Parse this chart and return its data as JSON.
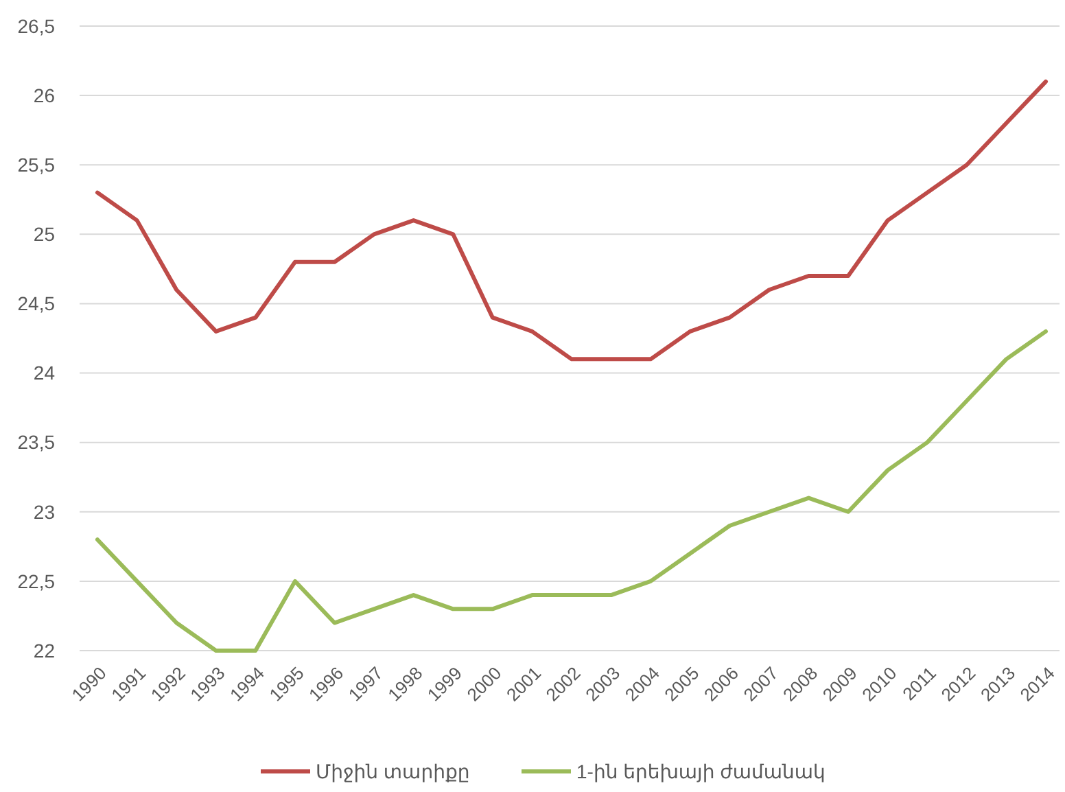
{
  "chart_data": {
    "type": "line",
    "categories": [
      "1990",
      "1991",
      "1992",
      "1993",
      "1994",
      "1995",
      "1996",
      "1997",
      "1998",
      "1999",
      "2000",
      "2001",
      "2002",
      "2003",
      "2004",
      "2005",
      "2006",
      "2007",
      "2008",
      "2009",
      "2010",
      "2011",
      "2012",
      "2013",
      "2014"
    ],
    "series": [
      {
        "name": "Միջին տարիքը",
        "color": "#be4b48",
        "values": [
          25.3,
          25.1,
          24.6,
          24.3,
          24.4,
          24.8,
          24.8,
          25.0,
          25.1,
          25.0,
          24.4,
          24.3,
          24.1,
          24.1,
          24.1,
          24.3,
          24.4,
          24.6,
          24.7,
          24.7,
          25.1,
          25.3,
          25.5,
          25.8,
          26.1
        ]
      },
      {
        "name": "1-ին երեխայի ժամանակ",
        "color": "#9bbb59",
        "values": [
          22.8,
          22.5,
          22.2,
          22.0,
          22.0,
          22.5,
          22.2,
          22.3,
          22.4,
          22.3,
          22.3,
          22.4,
          22.4,
          22.4,
          22.5,
          22.7,
          22.9,
          23.0,
          23.1,
          23.0,
          23.3,
          23.5,
          23.8,
          24.1,
          24.3
        ]
      }
    ],
    "ylim": [
      22,
      26.5
    ],
    "yticks": [
      22,
      {
        "value": 22.5,
        "label": "22,5"
      },
      23,
      {
        "value": 23.5,
        "label": "23,5"
      },
      24,
      {
        "value": 24.5,
        "label": "24,5"
      },
      25,
      {
        "value": 25.5,
        "label": "25,5"
      },
      26,
      {
        "value": 26.5,
        "label": "26,5"
      }
    ],
    "grid": "y",
    "legend": "bottom",
    "marker": "none",
    "line_style": "solid"
  }
}
